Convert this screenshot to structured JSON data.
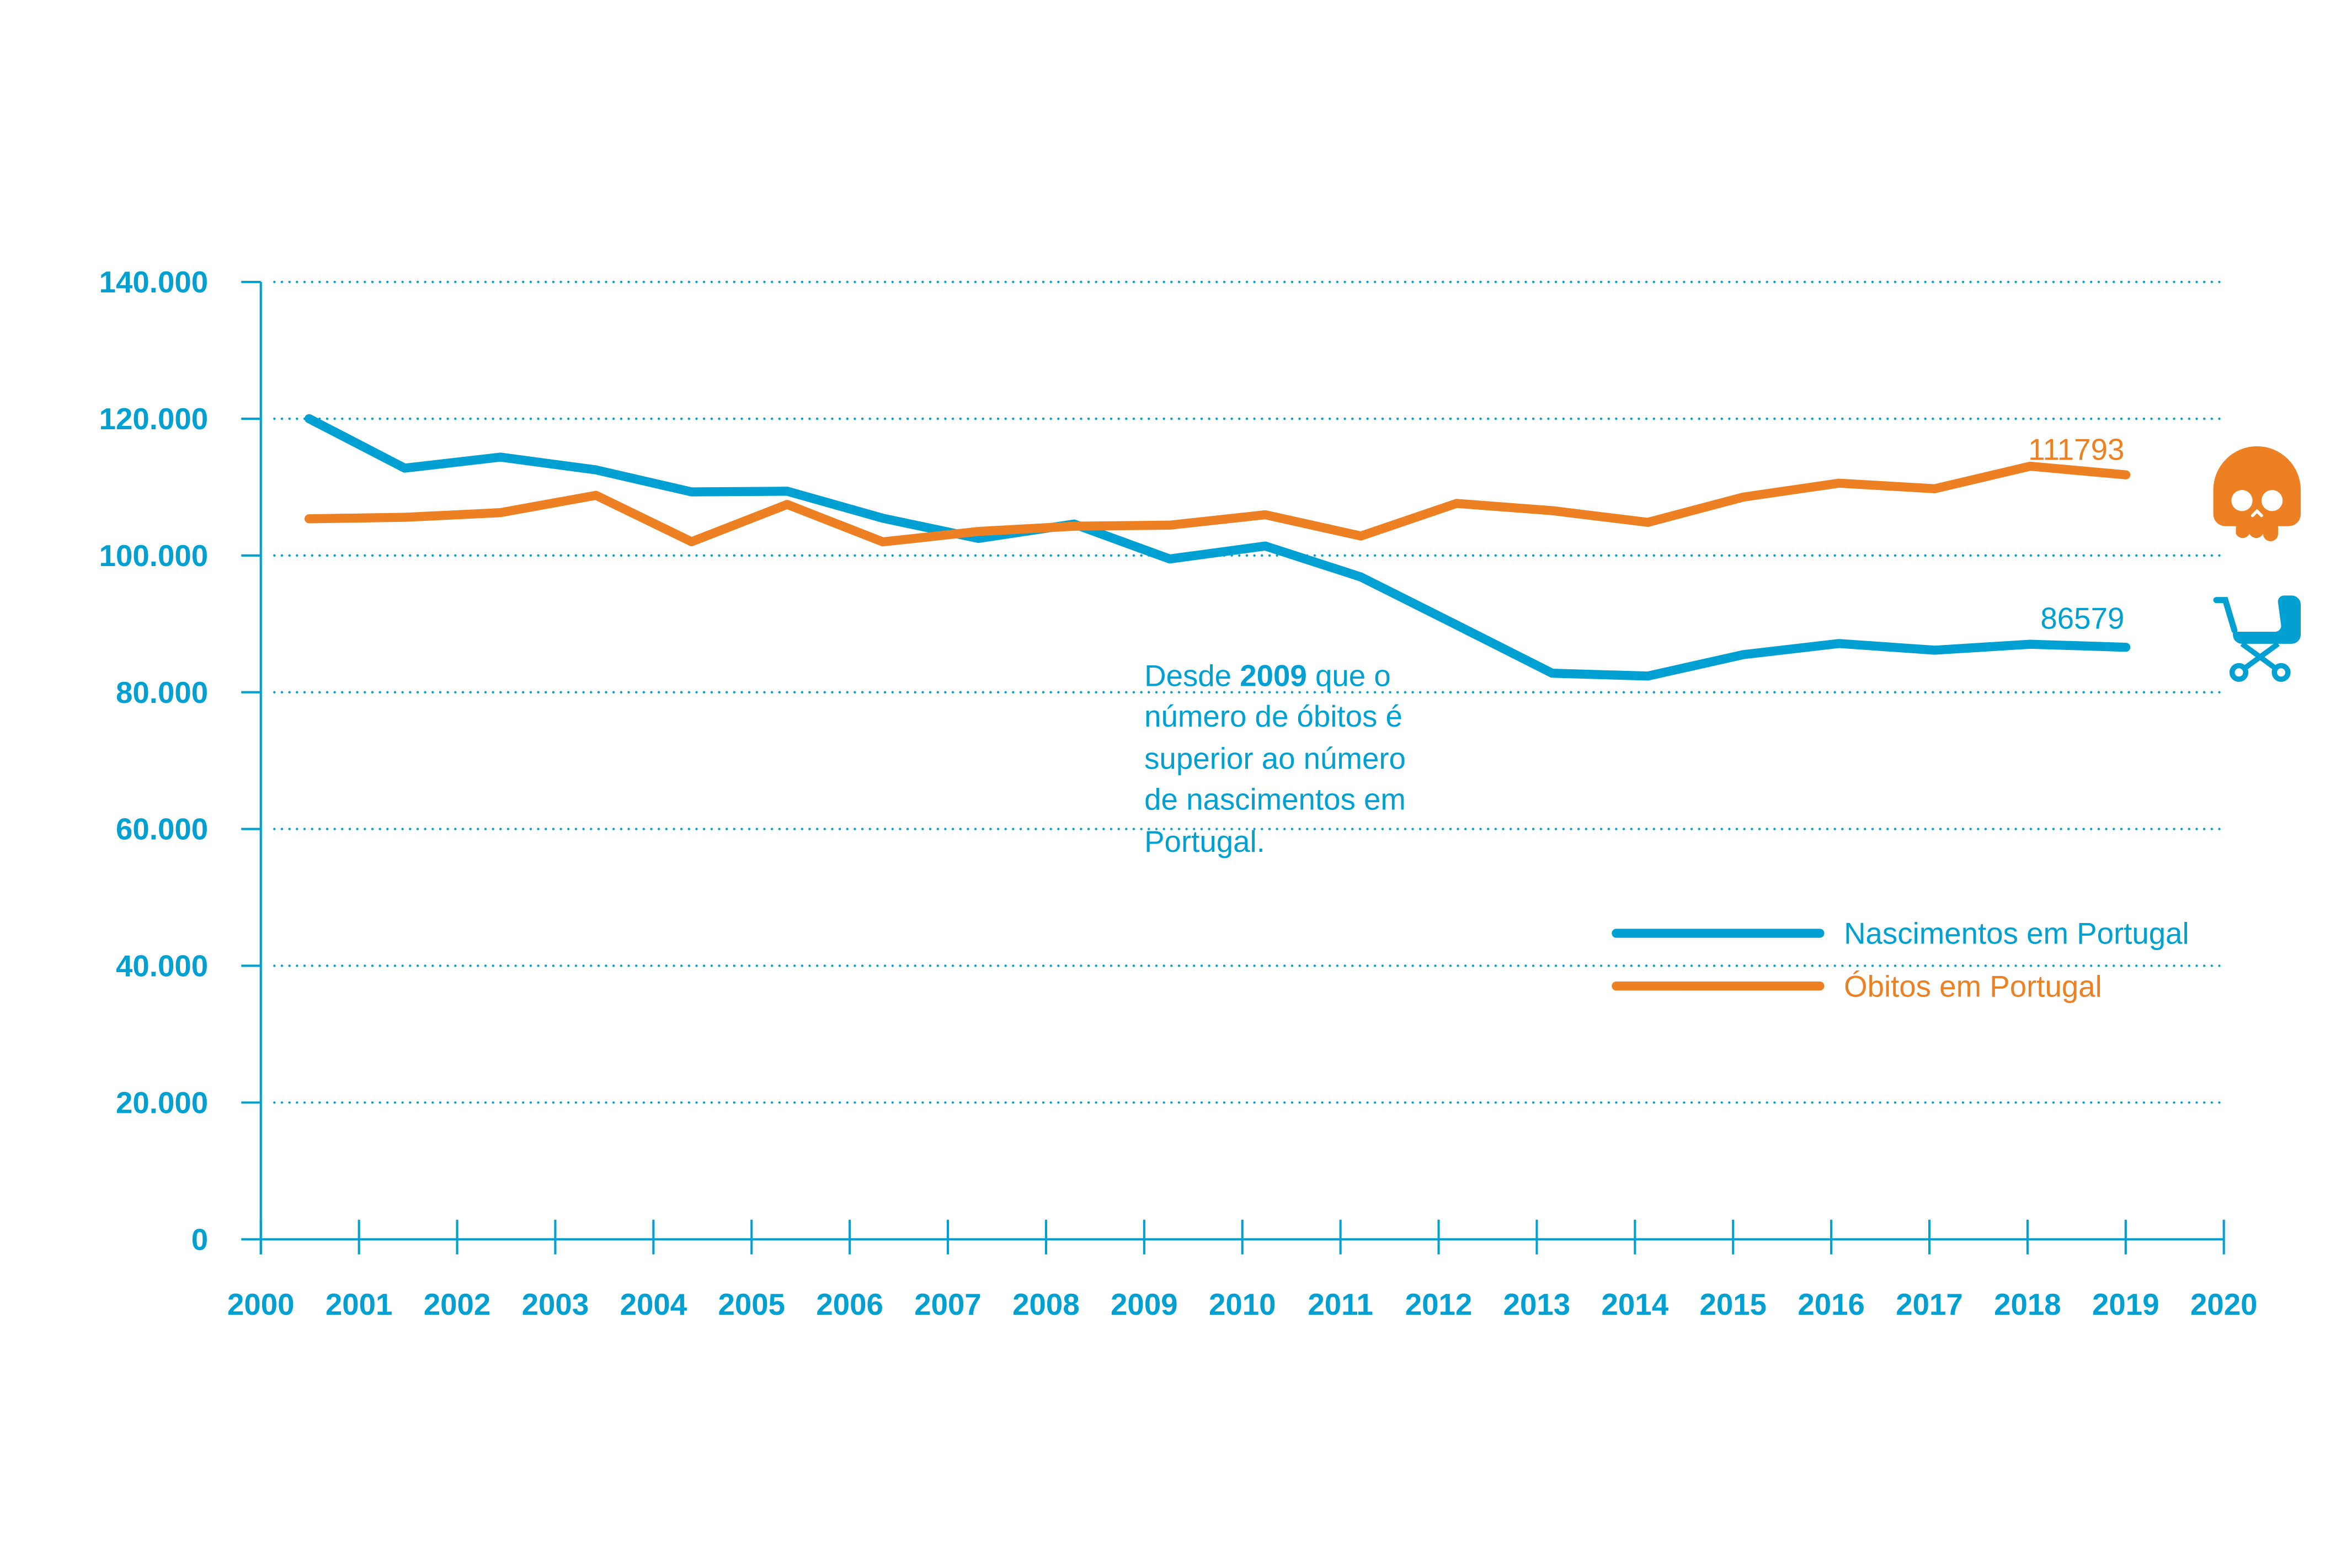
{
  "chart_data": {
    "type": "line",
    "title": "",
    "xlabel": "",
    "ylabel": "",
    "ylim": [
      0,
      140000
    ],
    "xlim": [
      2000,
      2020
    ],
    "grid": true,
    "legend_position": "bottom-right",
    "y_ticks": [
      "0",
      "20.000",
      "40.000",
      "60.000",
      "80.000",
      "100.000",
      "120.000",
      "140.000"
    ],
    "y_tick_values": [
      0,
      20000,
      40000,
      60000,
      80000,
      100000,
      120000,
      140000
    ],
    "x_ticks": [
      "2000",
      "2001",
      "2002",
      "2003",
      "2004",
      "2005",
      "2006",
      "2007",
      "2008",
      "2009",
      "2010",
      "2011",
      "2012",
      "2013",
      "2014",
      "2015",
      "2016",
      "2017",
      "2018",
      "2019",
      "2020"
    ],
    "x": [
      2000,
      2001,
      2002,
      2003,
      2004,
      2005,
      2006,
      2007,
      2008,
      2009,
      2010,
      2011,
      2012,
      2013,
      2014,
      2015,
      2016,
      2017,
      2018,
      2019
    ],
    "series": [
      {
        "name": "Nascimentos em Portugal",
        "color": "#00a0d2",
        "values": [
          120008,
          112774,
          114383,
          112515,
          109298,
          109399,
          105449,
          102492,
          104594,
          99491,
          101381,
          96856,
          89841,
          82787,
          82367,
          85500,
          87126,
          86154,
          87020,
          86579
        ],
        "end_label": "86579",
        "icon": "stroller-icon"
      },
      {
        "name": "Óbitos em Portugal",
        "color": "#ec8023",
        "values": [
          105364,
          105582,
          106258,
          108795,
          102012,
          107464,
          101990,
          103512,
          104280,
          104434,
          105954,
          102848,
          107612,
          106554,
          104843,
          108539,
          110573,
          109758,
          113051,
          111793
        ],
        "end_label": "111793",
        "icon": "skull-icon"
      }
    ],
    "annotation": {
      "lines": [
        {
          "pre": "Desde ",
          "bold": "2009",
          "post": " que o"
        },
        {
          "pre": "número de óbitos é"
        },
        {
          "pre": "superior ao número"
        },
        {
          "pre": "de nascimentos em"
        },
        {
          "pre": "Portugal."
        }
      ]
    },
    "axis_color": "#00a0d2"
  }
}
